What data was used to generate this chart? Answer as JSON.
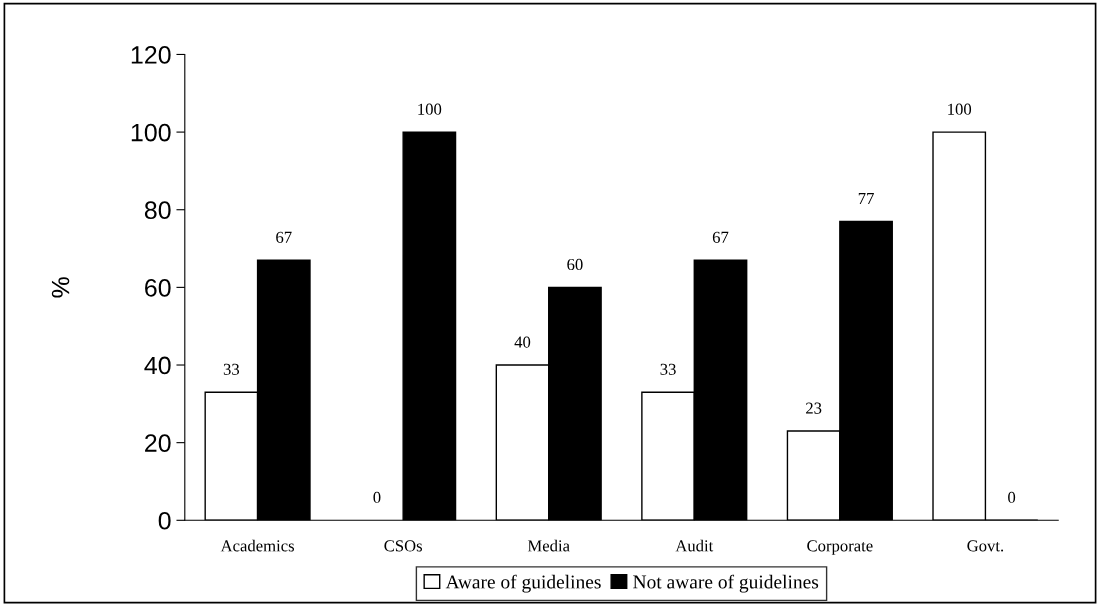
{
  "chart_data": {
    "type": "bar",
    "ylabel": "%",
    "categories": [
      "Academics",
      "CSOs",
      "Media",
      "Audit",
      "Corporate",
      "Govt."
    ],
    "series": [
      {
        "name": "Aware of guidelines",
        "color": "#ffffff",
        "values": [
          33,
          0,
          40,
          33,
          23,
          100
        ]
      },
      {
        "name": "Not aware of guidelines",
        "color": "#000000",
        "values": [
          67,
          100,
          60,
          67,
          77,
          0
        ]
      }
    ],
    "ylim": [
      0,
      120
    ],
    "yticks": [
      0,
      20,
      40,
      60,
      80,
      100,
      120
    ],
    "data_labels": true,
    "grid": false,
    "legend": "bottom"
  }
}
